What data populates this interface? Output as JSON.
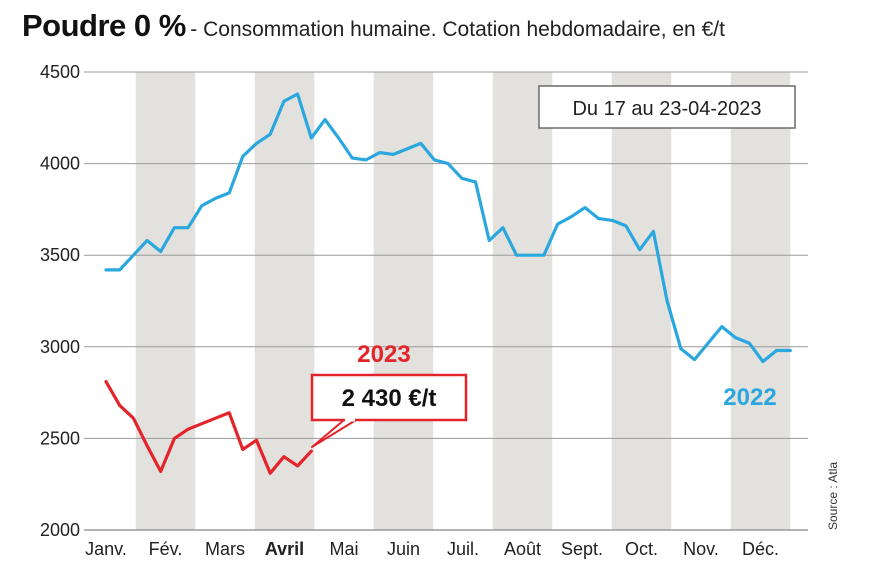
{
  "header": {
    "title": "Poudre 0 %",
    "subtitle": "- Consommation humaine. Cotation hebdomadaire, en €/t"
  },
  "period_label": "Du 17 au 23-04-2023",
  "source": "Source : Atla",
  "callout": "2 430 €/t",
  "colors": {
    "s2022": "#2aa7de",
    "s2023": "#e3242b",
    "band": "#e3e1dd",
    "grid": "#9a9a9a"
  },
  "chart_data": {
    "type": "line",
    "title": "Poudre 0 %",
    "ylim": [
      2000,
      4500
    ],
    "yticks": [
      2000,
      2500,
      3000,
      3500,
      4000,
      4500
    ],
    "months": [
      "Janv.",
      "Fév.",
      "Mars",
      "Avril",
      "Mai",
      "Juin",
      "Juil.",
      "Août",
      "Sept.",
      "Oct.",
      "Nov.",
      "Déc."
    ],
    "highlight_month": "Avril",
    "grid": true,
    "series": [
      {
        "name": "2022",
        "x": [
          0.0,
          0.23,
          0.46,
          0.69,
          0.92,
          1.15,
          1.38,
          1.61,
          1.84,
          2.07,
          2.3,
          2.53,
          2.76,
          2.99,
          3.22,
          3.45,
          3.68,
          3.91,
          4.14,
          4.37,
          4.6,
          4.83,
          5.06,
          5.29,
          5.52,
          5.75,
          5.98,
          6.21,
          6.44,
          6.67,
          6.9,
          7.13,
          7.36,
          7.59,
          7.82,
          8.05,
          8.28,
          8.51,
          8.74,
          8.97,
          9.2,
          9.43,
          9.66,
          9.89,
          10.12,
          10.35,
          10.58,
          10.81,
          11.04,
          11.27,
          11.5
        ],
        "values": [
          3420,
          3420,
          3500,
          3580,
          3520,
          3650,
          3650,
          3770,
          3810,
          3840,
          4040,
          4110,
          4160,
          4340,
          4380,
          4140,
          4240,
          4140,
          4030,
          4020,
          4060,
          4050,
          4080,
          4110,
          4020,
          4000,
          3920,
          3900,
          3580,
          3650,
          3500,
          3500,
          3500,
          3670,
          3710,
          3760,
          3700,
          3690,
          3660,
          3530,
          3630,
          3250,
          2990,
          2930,
          3020,
          3110,
          3050,
          3020,
          2920,
          2980,
          2980
        ]
      },
      {
        "name": "2023",
        "x": [
          0.0,
          0.23,
          0.46,
          0.69,
          0.92,
          1.15,
          1.38,
          1.61,
          1.84,
          2.07,
          2.3,
          2.53,
          2.76,
          2.99,
          3.22,
          3.45
        ],
        "values": [
          2810,
          2680,
          2610,
          2460,
          2320,
          2500,
          2550,
          2580,
          2610,
          2640,
          2440,
          2490,
          2310,
          2400,
          2350,
          2430
        ]
      }
    ]
  }
}
